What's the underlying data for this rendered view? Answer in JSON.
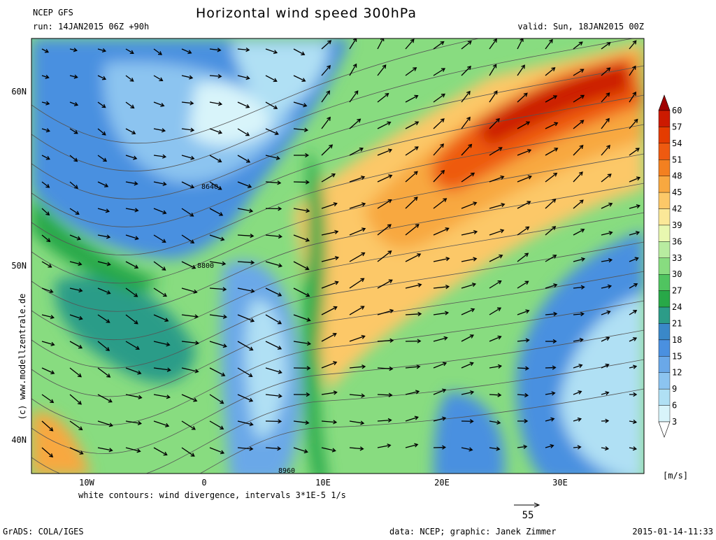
{
  "header": {
    "model": "NCEP GFS",
    "title": "Horizontal wind speed 300hPa",
    "run": "run: 14JAN2015 06Z +90h",
    "valid": "valid: Sun, 18JAN2015 00Z"
  },
  "map": {
    "lat_labels": [
      "60N",
      "50N",
      "40N"
    ],
    "lon_labels": [
      "10W",
      "0",
      "10E",
      "20E",
      "30E"
    ],
    "contour_labels": [
      "8640",
      "8800",
      "8960"
    ],
    "copyright": "(c) www.modellzentrale.de"
  },
  "colorbar": {
    "labels": [
      "60",
      "57",
      "54",
      "51",
      "48",
      "45",
      "42",
      "39",
      "36",
      "33",
      "30",
      "27",
      "24",
      "21",
      "18",
      "15",
      "12",
      "9",
      "6",
      "3"
    ],
    "colors": [
      "#a00000",
      "#cc1a00",
      "#e43c00",
      "#ee5a10",
      "#f38020",
      "#f8a840",
      "#fcc868",
      "#fbe898",
      "#e8f8b0",
      "#b8eca0",
      "#88dc80",
      "#50c460",
      "#28a848",
      "#2c9c88",
      "#3a88c8",
      "#4a90e0",
      "#6aa8e8",
      "#8cc4f0",
      "#b0e0f4",
      "#d8f4fa",
      "#ffffff"
    ],
    "unit": "[m/s]"
  },
  "footer": {
    "note": "white contours: wind divergence, intervals 3*1E-5 1/s",
    "ref_vector": "55",
    "grads": "GrADS: COLA/IGES",
    "credit": "data: NCEP; graphic: Janek Zimmer",
    "timestamp": "2015-01-14-11:33"
  }
}
